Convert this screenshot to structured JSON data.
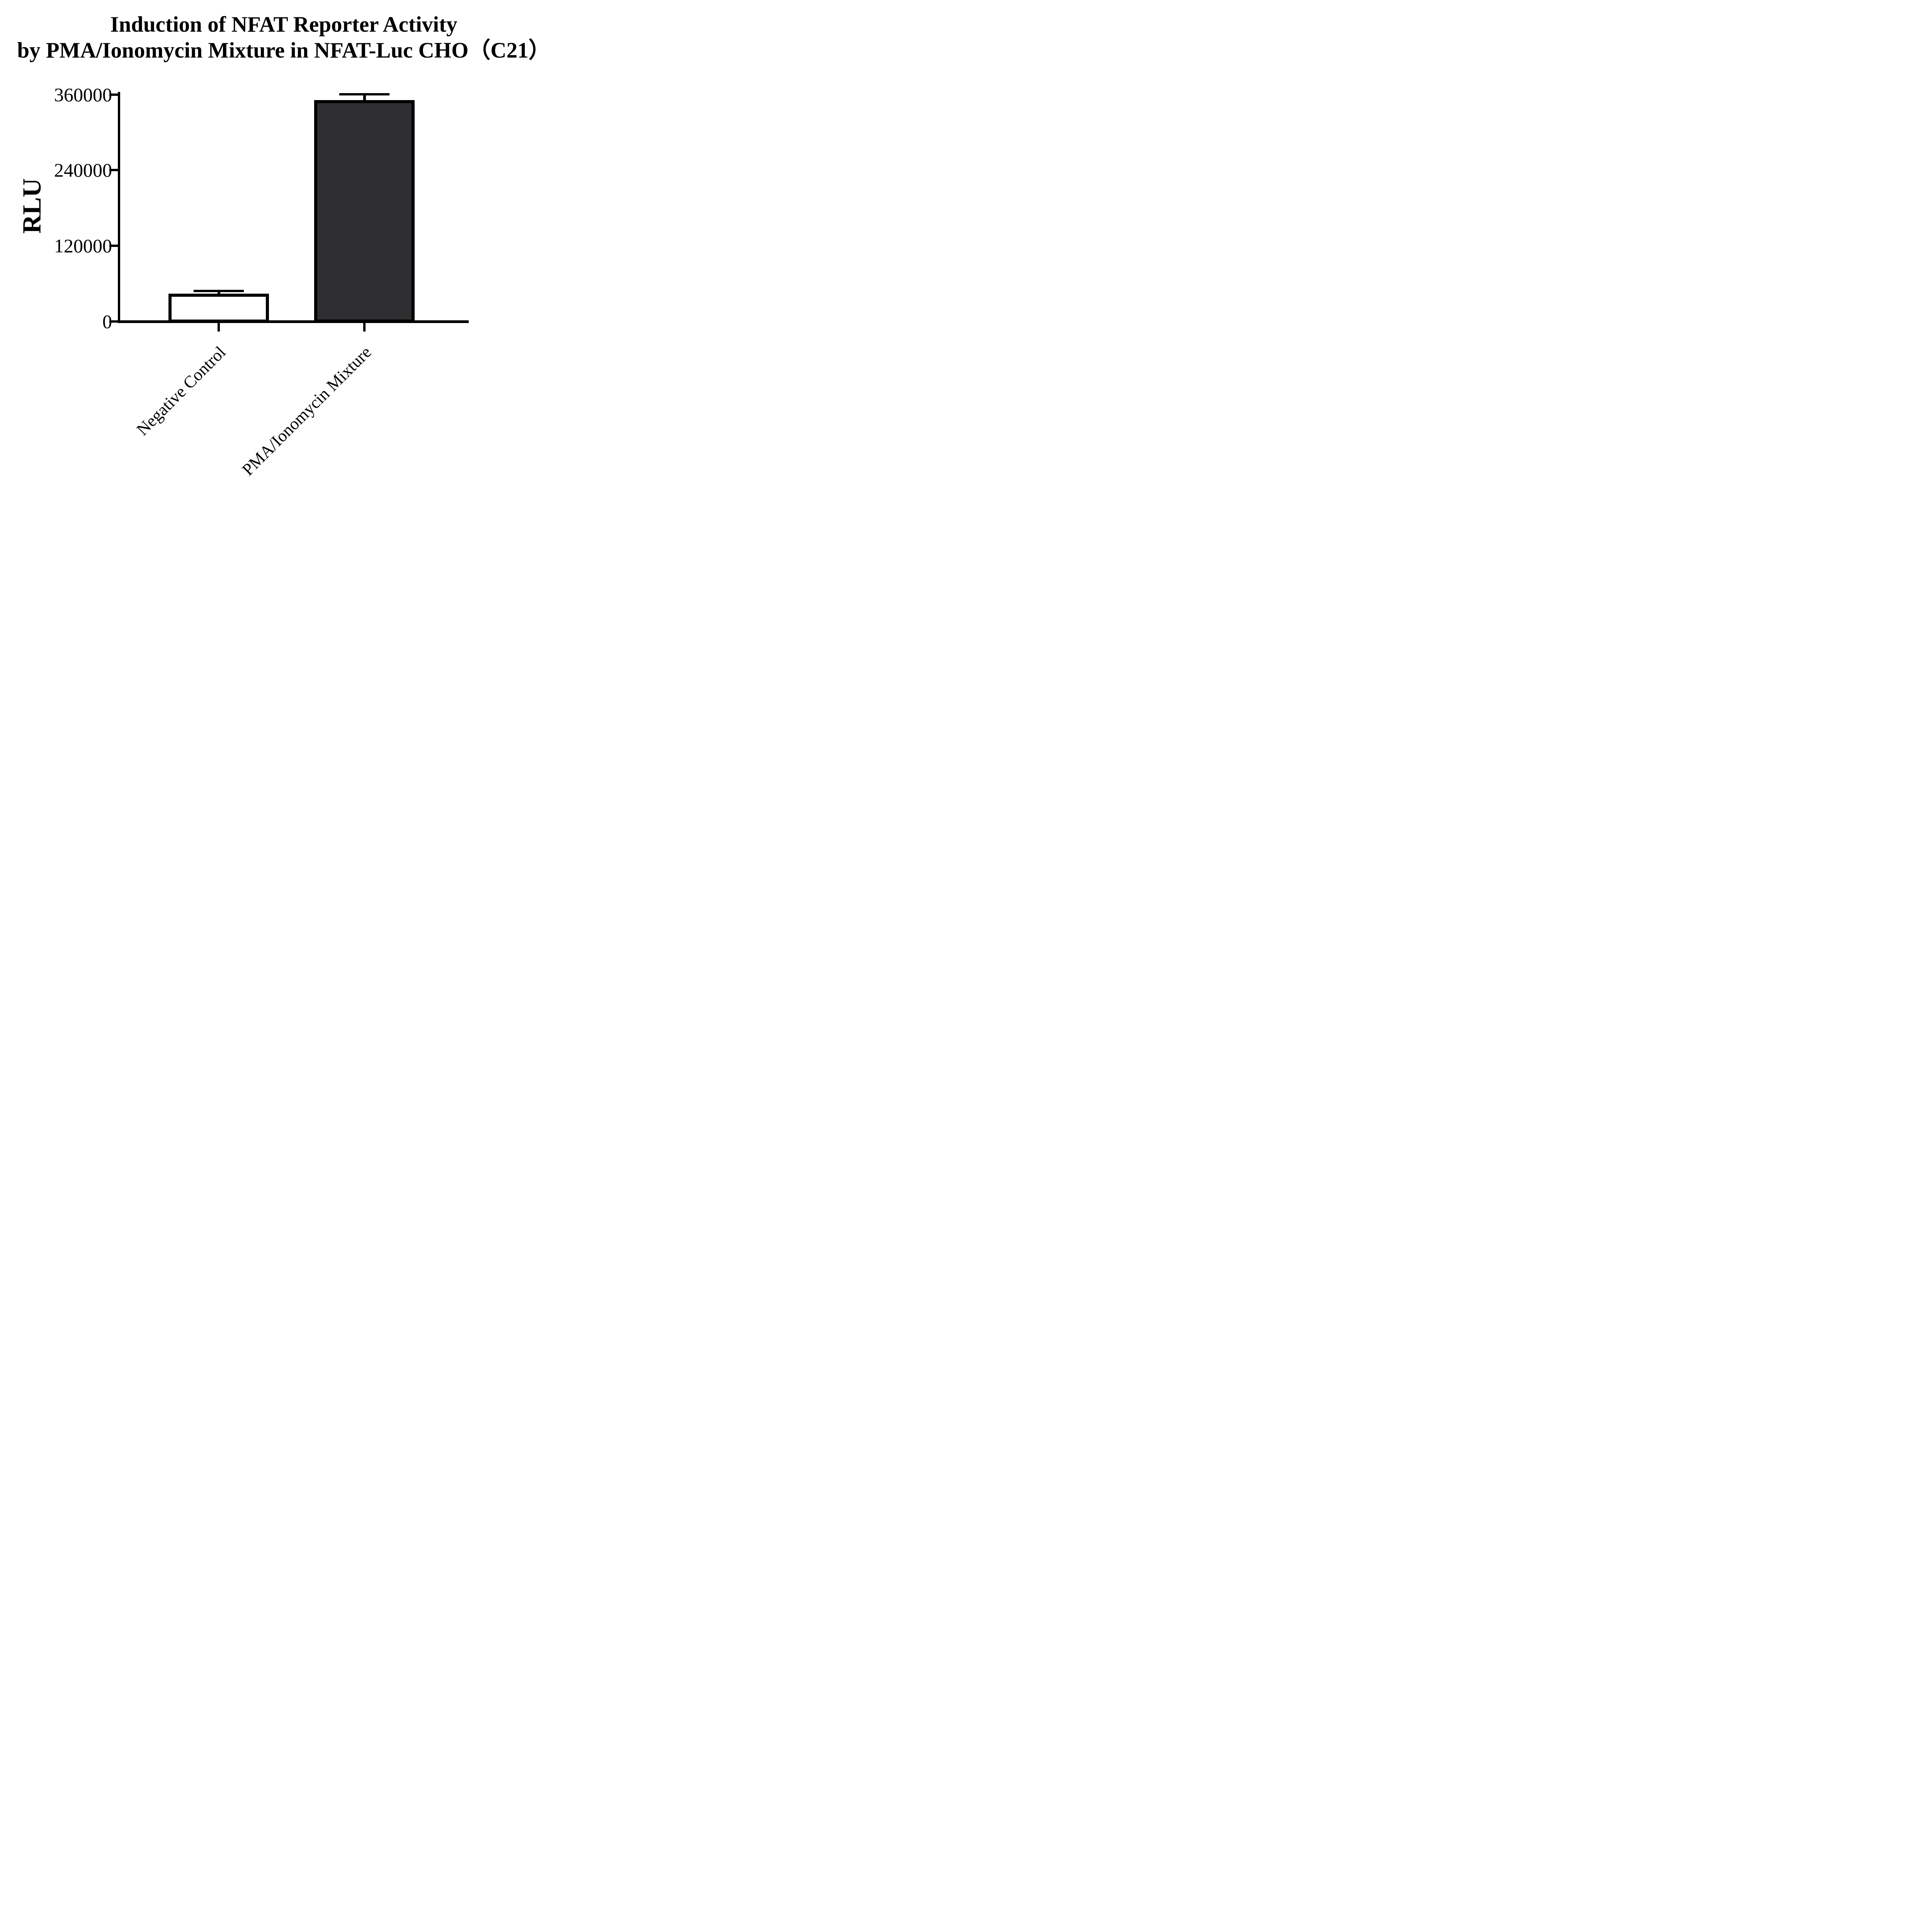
{
  "title": {
    "line1": "Induction of NFAT Reporter Activity",
    "line2": "by PMA/Ionomycin Mixture in NFAT-Luc CHO（C21）"
  },
  "ylabel": "RLU",
  "chart_data": {
    "type": "bar",
    "title": "Induction of NFAT Reporter Activity by PMA/Ionomycin Mixture in NFAT-Luc CHO（C21）",
    "xlabel": "",
    "ylabel": "RLU",
    "categories": [
      "Negative Control",
      "PMA/Ionomycin Mixture"
    ],
    "values": [
      44000,
      351000
    ],
    "errors_plus": [
      4500,
      9500
    ],
    "error_style": "upper SD whisker with cap",
    "yticks": [
      0,
      120000,
      240000,
      360000
    ],
    "ytick_labels": [
      "0",
      "120000",
      "240000",
      "360000"
    ],
    "ylim": [
      0,
      360000
    ],
    "bar_fill_colors": [
      "#ffffff",
      "#2f2f31"
    ],
    "bar_border_color": "#000000",
    "error_color": "#000000",
    "axis_color": "#000000",
    "background_color": "#ffffff",
    "grid": false,
    "legend": "none",
    "x_label_rotation_deg": 45
  }
}
